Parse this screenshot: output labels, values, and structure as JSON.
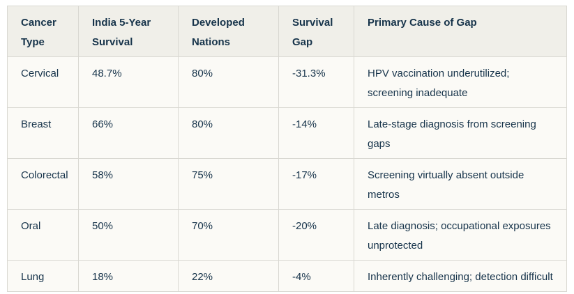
{
  "table": {
    "columns": [
      "Cancer Type",
      "India 5-Year Survival",
      "Developed Nations",
      "Survival Gap",
      "Primary Cause of Gap"
    ],
    "rows": [
      [
        "Cervical",
        "48.7%",
        "80%",
        "-31.3%",
        "HPV vaccination underutilized; screening inadequate"
      ],
      [
        "Breast",
        "66%",
        "80%",
        "-14%",
        "Late-stage diagnosis from screening gaps"
      ],
      [
        "Colorectal",
        "58%",
        "75%",
        "-17%",
        "Screening virtually absent outside metros"
      ],
      [
        "Oral",
        "50%",
        "70%",
        "-20%",
        "Late diagnosis; occupational exposures unprotected"
      ],
      [
        "Lung",
        "18%",
        "22%",
        "-4%",
        "Inherently challenging; detection difficult"
      ]
    ]
  },
  "chart_data": {
    "type": "table",
    "columns": [
      "Cancer Type",
      "India 5-Year Survival",
      "Developed Nations",
      "Survival Gap",
      "Primary Cause of Gap"
    ],
    "rows": [
      [
        "Cervical",
        "48.7%",
        "80%",
        "-31.3%",
        "HPV vaccination underutilized; screening inadequate"
      ],
      [
        "Breast",
        "66%",
        "80%",
        "-14%",
        "Late-stage diagnosis from screening gaps"
      ],
      [
        "Colorectal",
        "58%",
        "75%",
        "-17%",
        "Screening virtually absent outside metros"
      ],
      [
        "Oral",
        "50%",
        "70%",
        "-20%",
        "Late diagnosis; occupational exposures unprotected"
      ],
      [
        "Lung",
        "18%",
        "22%",
        "-4%",
        "Inherently challenging; detection difficult"
      ]
    ],
    "title": ""
  },
  "colors": {
    "page_background": "#ffffff",
    "header_background": "#f0efe9",
    "row_background": "#fbfaf6",
    "border": "#d9d8d2",
    "text": "#16334a"
  }
}
